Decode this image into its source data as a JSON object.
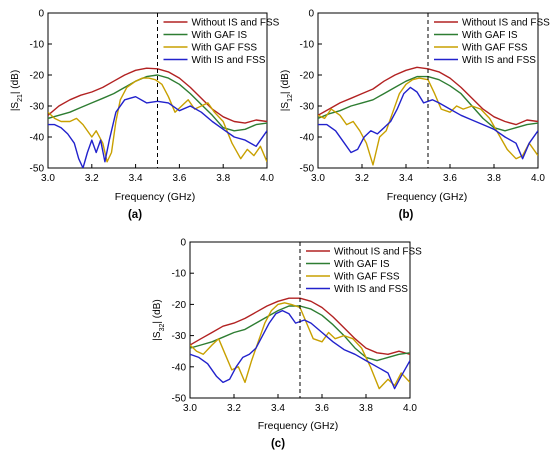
{
  "figure": {
    "panel_labels": [
      "(a)",
      "(b)",
      "(c)"
    ]
  },
  "chart_data": [
    {
      "type": "line",
      "panel": "(a)",
      "xlabel": "Frequency (GHz)",
      "ylabel": "|S21| (dB)",
      "ylabel_main": "|S",
      "ylabel_sub": "21",
      "ylabel_end": "| (dB)",
      "xlim": [
        3.0,
        4.0
      ],
      "ylim": [
        -50,
        0
      ],
      "xticks": [
        3.0,
        3.2,
        3.4,
        3.6,
        3.8,
        4.0
      ],
      "xtick_labels": [
        "3.0",
        "3.2",
        "3.4",
        "3.6",
        "3.8",
        "4.0"
      ],
      "yticks": [
        0,
        -10,
        -20,
        -30,
        -40,
        -50
      ],
      "ytick_labels": [
        "0",
        "-10",
        "-20",
        "-30",
        "-40",
        "-50"
      ],
      "vline": 3.5,
      "legend_position": "top-right",
      "series": [
        {
          "name": "Without IS and FSS",
          "color": "#b22222",
          "x": [
            3.0,
            3.05,
            3.1,
            3.15,
            3.2,
            3.25,
            3.3,
            3.35,
            3.4,
            3.45,
            3.5,
            3.55,
            3.6,
            3.65,
            3.7,
            3.75,
            3.8,
            3.85,
            3.9,
            3.95,
            4.0
          ],
          "y": [
            -33,
            -30,
            -28,
            -26.5,
            -25.5,
            -24,
            -22,
            -20,
            -18.5,
            -17.8,
            -18,
            -19,
            -21,
            -24,
            -27.5,
            -31,
            -33.5,
            -35,
            -35.5,
            -34.5,
            -35
          ]
        },
        {
          "name": "With GAF IS",
          "color": "#2e7d32",
          "x": [
            3.0,
            3.05,
            3.1,
            3.15,
            3.2,
            3.25,
            3.3,
            3.35,
            3.4,
            3.45,
            3.5,
            3.55,
            3.6,
            3.65,
            3.7,
            3.75,
            3.8,
            3.85,
            3.9,
            3.95,
            4.0
          ],
          "y": [
            -34,
            -33,
            -32,
            -30.5,
            -29,
            -27.5,
            -26,
            -24,
            -22,
            -20.5,
            -20,
            -21,
            -23,
            -26,
            -29.5,
            -33,
            -37,
            -38,
            -37.5,
            -36,
            -35.5
          ]
        },
        {
          "name": "With GAF FSS",
          "color": "#c8a000",
          "x": [
            3.0,
            3.03,
            3.06,
            3.1,
            3.13,
            3.16,
            3.2,
            3.22,
            3.25,
            3.27,
            3.29,
            3.31,
            3.33,
            3.36,
            3.4,
            3.43,
            3.46,
            3.49,
            3.52,
            3.55,
            3.58,
            3.61,
            3.64,
            3.67,
            3.7,
            3.73,
            3.76,
            3.8,
            3.84,
            3.88,
            3.91,
            3.94,
            3.97,
            4.0
          ],
          "y": [
            -32,
            -34,
            -35,
            -35,
            -34,
            -36,
            -40,
            -38,
            -42,
            -48,
            -45,
            -35,
            -28,
            -24,
            -22,
            -21,
            -21,
            -21.5,
            -23,
            -27,
            -32,
            -30,
            -28,
            -31,
            -30,
            -29,
            -32,
            -35,
            -42,
            -47,
            -44,
            -46,
            -43,
            -48
          ]
        },
        {
          "name": "With IS and FSS",
          "color": "#2222cc",
          "x": [
            3.0,
            3.03,
            3.06,
            3.09,
            3.12,
            3.14,
            3.16,
            3.18,
            3.2,
            3.22,
            3.24,
            3.26,
            3.28,
            3.31,
            3.35,
            3.4,
            3.45,
            3.5,
            3.55,
            3.6,
            3.65,
            3.7,
            3.75,
            3.8,
            3.85,
            3.9,
            3.95,
            4.0
          ],
          "y": [
            -36,
            -36,
            -37,
            -39,
            -42,
            -47,
            -50,
            -45,
            -41,
            -45,
            -41,
            -48,
            -41,
            -32,
            -28,
            -27,
            -29,
            -28.5,
            -29,
            -31.5,
            -30,
            -32,
            -35,
            -37.5,
            -40,
            -41,
            -43,
            -38
          ]
        }
      ]
    },
    {
      "type": "line",
      "panel": "(b)",
      "xlabel": "Frequency (GHz)",
      "ylabel": "|S12| (dB)",
      "ylabel_main": "|S",
      "ylabel_sub": "12",
      "ylabel_end": "| (dB)",
      "xlim": [
        3.0,
        4.0
      ],
      "ylim": [
        -50,
        0
      ],
      "xticks": [
        3.0,
        3.2,
        3.4,
        3.6,
        3.8,
        4.0
      ],
      "xtick_labels": [
        "3.0",
        "3.2",
        "3.4",
        "3.6",
        "3.8",
        "4.0"
      ],
      "yticks": [
        0,
        -10,
        -20,
        -30,
        -40,
        -50
      ],
      "ytick_labels": [
        "0",
        "-10",
        "-20",
        "-30",
        "-40",
        "-50"
      ],
      "vline": 3.5,
      "legend_position": "top-right",
      "series": [
        {
          "name": "Without IS and FSS",
          "color": "#b22222",
          "x": [
            3.0,
            3.05,
            3.1,
            3.15,
            3.2,
            3.25,
            3.3,
            3.35,
            3.4,
            3.45,
            3.5,
            3.55,
            3.6,
            3.65,
            3.7,
            3.75,
            3.8,
            3.85,
            3.9,
            3.95,
            4.0
          ],
          "y": [
            -33,
            -31,
            -29,
            -27.5,
            -26,
            -24.5,
            -22,
            -20,
            -18.5,
            -17.5,
            -18,
            -19,
            -21,
            -24,
            -27.5,
            -31,
            -33.5,
            -35,
            -36,
            -34.5,
            -35
          ]
        },
        {
          "name": "With GAF IS",
          "color": "#2e7d32",
          "x": [
            3.0,
            3.05,
            3.1,
            3.15,
            3.2,
            3.25,
            3.3,
            3.35,
            3.4,
            3.45,
            3.5,
            3.55,
            3.6,
            3.65,
            3.7,
            3.75,
            3.8,
            3.85,
            3.9,
            3.95,
            4.0
          ],
          "y": [
            -34,
            -32.5,
            -31.5,
            -30,
            -29,
            -28,
            -26,
            -24,
            -22,
            -20.5,
            -20.5,
            -21.5,
            -23.5,
            -26,
            -30,
            -34,
            -37,
            -38,
            -37,
            -36,
            -35.5
          ]
        },
        {
          "name": "With GAF FSS",
          "color": "#c8a000",
          "x": [
            3.0,
            3.03,
            3.06,
            3.1,
            3.13,
            3.16,
            3.19,
            3.22,
            3.25,
            3.28,
            3.31,
            3.34,
            3.37,
            3.4,
            3.43,
            3.46,
            3.5,
            3.53,
            3.56,
            3.6,
            3.63,
            3.66,
            3.7,
            3.74,
            3.78,
            3.82,
            3.86,
            3.9,
            3.93,
            3.96,
            4.0
          ],
          "y": [
            -33,
            -34,
            -31,
            -33,
            -36,
            -35,
            -38,
            -42,
            -49,
            -40,
            -38,
            -32,
            -26,
            -23,
            -21.5,
            -21,
            -21.5,
            -26,
            -31,
            -32,
            -30,
            -31,
            -30,
            -31,
            -34,
            -39,
            -44,
            -47,
            -46,
            -42,
            -46
          ]
        },
        {
          "name": "With IS and FSS",
          "color": "#2222cc",
          "x": [
            3.0,
            3.04,
            3.08,
            3.12,
            3.15,
            3.18,
            3.21,
            3.24,
            3.27,
            3.3,
            3.33,
            3.36,
            3.39,
            3.42,
            3.45,
            3.48,
            3.52,
            3.55,
            3.6,
            3.65,
            3.7,
            3.75,
            3.8,
            3.85,
            3.9,
            3.93,
            3.96,
            4.0
          ],
          "y": [
            -36,
            -36,
            -38,
            -42,
            -45,
            -44,
            -40,
            -38,
            -39,
            -37,
            -35,
            -31,
            -26,
            -24,
            -25.5,
            -29,
            -28,
            -29,
            -31,
            -33,
            -34.5,
            -36,
            -37.5,
            -40,
            -42,
            -47,
            -42,
            -38
          ]
        }
      ]
    },
    {
      "type": "line",
      "panel": "(c)",
      "xlabel": "Frequency (GHz)",
      "ylabel": "|S32| (dB)",
      "ylabel_main": "|S",
      "ylabel_sub": "32",
      "ylabel_end": "| (dB)",
      "xlim": [
        3.0,
        4.0
      ],
      "ylim": [
        -50,
        0
      ],
      "xticks": [
        3.0,
        3.2,
        3.4,
        3.6,
        3.8,
        4.0
      ],
      "xtick_labels": [
        "3.0",
        "3.2",
        "3.4",
        "3.6",
        "3.8",
        "4.0"
      ],
      "yticks": [
        0,
        -10,
        -20,
        -30,
        -40,
        -50
      ],
      "ytick_labels": [
        "0",
        "-10",
        "-20",
        "-30",
        "-40",
        "-50"
      ],
      "vline": 3.5,
      "legend_position": "top-right",
      "series": [
        {
          "name": "Without IS and FSS",
          "color": "#b22222",
          "x": [
            3.0,
            3.05,
            3.1,
            3.15,
            3.2,
            3.25,
            3.3,
            3.35,
            3.4,
            3.45,
            3.5,
            3.55,
            3.6,
            3.65,
            3.7,
            3.75,
            3.8,
            3.85,
            3.9,
            3.95,
            4.0
          ],
          "y": [
            -33,
            -31,
            -29,
            -27,
            -26,
            -24.5,
            -22.5,
            -20.5,
            -19,
            -18,
            -18,
            -19,
            -21,
            -24,
            -27.5,
            -31,
            -34,
            -35.5,
            -36,
            -35,
            -36
          ]
        },
        {
          "name": "With GAF IS",
          "color": "#2e7d32",
          "x": [
            3.0,
            3.05,
            3.1,
            3.15,
            3.2,
            3.25,
            3.3,
            3.35,
            3.4,
            3.45,
            3.5,
            3.55,
            3.6,
            3.65,
            3.7,
            3.75,
            3.8,
            3.85,
            3.9,
            3.95,
            4.0
          ],
          "y": [
            -34,
            -33,
            -32,
            -30.5,
            -29,
            -28,
            -26,
            -24,
            -22,
            -20.5,
            -20.5,
            -21.5,
            -23.5,
            -26.5,
            -30,
            -34,
            -37,
            -38,
            -37,
            -36,
            -35.5
          ]
        },
        {
          "name": "With GAF FSS",
          "color": "#c8a000",
          "x": [
            3.0,
            3.03,
            3.06,
            3.1,
            3.13,
            3.16,
            3.19,
            3.22,
            3.25,
            3.28,
            3.31,
            3.34,
            3.37,
            3.4,
            3.43,
            3.46,
            3.5,
            3.53,
            3.56,
            3.6,
            3.63,
            3.66,
            3.7,
            3.74,
            3.78,
            3.82,
            3.86,
            3.9,
            3.93,
            3.96,
            4.0
          ],
          "y": [
            -33,
            -35,
            -36,
            -33,
            -31,
            -36,
            -41,
            -40,
            -45,
            -38,
            -32,
            -26,
            -22,
            -20,
            -19.5,
            -20,
            -21,
            -26,
            -31,
            -32,
            -29,
            -31,
            -30,
            -31,
            -34,
            -40,
            -47,
            -44,
            -46,
            -42,
            -45
          ]
        },
        {
          "name": "With IS and FSS",
          "color": "#2222cc",
          "x": [
            3.0,
            3.04,
            3.08,
            3.12,
            3.15,
            3.18,
            3.21,
            3.24,
            3.27,
            3.3,
            3.33,
            3.36,
            3.39,
            3.42,
            3.45,
            3.48,
            3.52,
            3.55,
            3.6,
            3.65,
            3.7,
            3.75,
            3.8,
            3.85,
            3.9,
            3.93,
            3.96,
            4.0
          ],
          "y": [
            -36,
            -37,
            -39,
            -43,
            -45,
            -44,
            -40,
            -37,
            -36,
            -34,
            -30,
            -26,
            -23,
            -22,
            -23,
            -26,
            -25,
            -26,
            -29,
            -32,
            -34.5,
            -36,
            -38,
            -40,
            -42,
            -47,
            -43,
            -38
          ]
        }
      ]
    }
  ]
}
